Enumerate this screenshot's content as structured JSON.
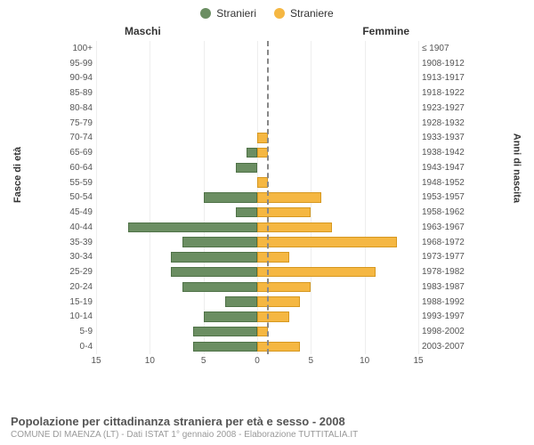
{
  "chart": {
    "type": "population-pyramid",
    "legend": [
      {
        "label": "Stranieri",
        "color": "#6b8e62"
      },
      {
        "label": "Straniere",
        "color": "#f5b742"
      }
    ],
    "panel_titles": {
      "left": "Maschi",
      "right": "Femmine"
    },
    "axis_titles": {
      "left": "Fasce di età",
      "right": "Anni di nascita"
    },
    "left_color": "#6b8e62",
    "left_stroke": "#4f7247",
    "right_color": "#f5b742",
    "right_stroke": "#d69820",
    "bg_color": "#ffffff",
    "grid_color": "#eeeeee",
    "divider_color": "#888888",
    "xlim": 15,
    "xticks": [
      15,
      10,
      5,
      0,
      5,
      10,
      15
    ],
    "rows": [
      {
        "age": "100+",
        "birth": "≤ 1907",
        "m": 0,
        "f": 0
      },
      {
        "age": "95-99",
        "birth": "1908-1912",
        "m": 0,
        "f": 0
      },
      {
        "age": "90-94",
        "birth": "1913-1917",
        "m": 0,
        "f": 0
      },
      {
        "age": "85-89",
        "birth": "1918-1922",
        "m": 0,
        "f": 0
      },
      {
        "age": "80-84",
        "birth": "1923-1927",
        "m": 0,
        "f": 0
      },
      {
        "age": "75-79",
        "birth": "1928-1932",
        "m": 0,
        "f": 0
      },
      {
        "age": "70-74",
        "birth": "1933-1937",
        "m": 0,
        "f": 1
      },
      {
        "age": "65-69",
        "birth": "1938-1942",
        "m": 1,
        "f": 1
      },
      {
        "age": "60-64",
        "birth": "1943-1947",
        "m": 2,
        "f": 0
      },
      {
        "age": "55-59",
        "birth": "1948-1952",
        "m": 0,
        "f": 1
      },
      {
        "age": "50-54",
        "birth": "1953-1957",
        "m": 5,
        "f": 6
      },
      {
        "age": "45-49",
        "birth": "1958-1962",
        "m": 2,
        "f": 5
      },
      {
        "age": "40-44",
        "birth": "1963-1967",
        "m": 12,
        "f": 7
      },
      {
        "age": "35-39",
        "birth": "1968-1972",
        "m": 7,
        "f": 13
      },
      {
        "age": "30-34",
        "birth": "1973-1977",
        "m": 8,
        "f": 3
      },
      {
        "age": "25-29",
        "birth": "1978-1982",
        "m": 8,
        "f": 11
      },
      {
        "age": "20-24",
        "birth": "1983-1987",
        "m": 7,
        "f": 5
      },
      {
        "age": "15-19",
        "birth": "1988-1992",
        "m": 3,
        "f": 4
      },
      {
        "age": "10-14",
        "birth": "1993-1997",
        "m": 5,
        "f": 3
      },
      {
        "age": "5-9",
        "birth": "1998-2002",
        "m": 6,
        "f": 1
      },
      {
        "age": "0-4",
        "birth": "2003-2007",
        "m": 6,
        "f": 4
      }
    ],
    "title": "Popolazione per cittadinanza straniera per età e sesso - 2008",
    "subtitle": "COMUNE DI MAENZA (LT) - Dati ISTAT 1° gennaio 2008 - Elaborazione TUTTITALIA.IT",
    "fontsizes": {
      "legend": 12,
      "panel_title": 12,
      "axis_title": 11,
      "tick": 10,
      "title": 13,
      "subtitle": 10
    }
  }
}
